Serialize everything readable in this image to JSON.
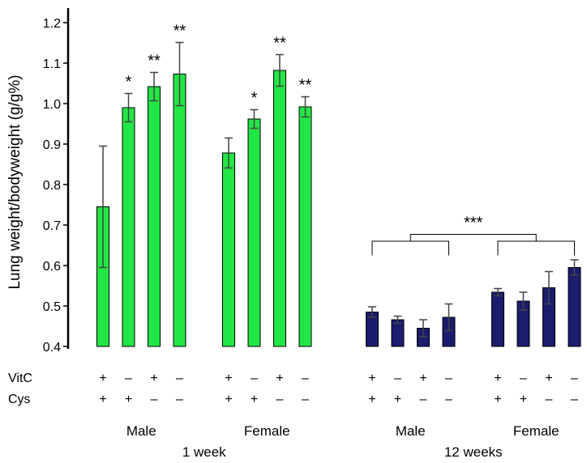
{
  "chart_data": {
    "type": "bar",
    "ylabel": "Lung weight/bodyweight (g/g%)",
    "ylim": [
      0.4,
      1.25
    ],
    "yticks": [
      0.4,
      0.5,
      0.6,
      0.7,
      0.8,
      0.9,
      1.0,
      1.1,
      1.2
    ],
    "ytick_labels": [
      "0.4",
      "0.5",
      "0.6",
      "0.7",
      "0.8",
      "0.9",
      "1.0",
      "1.1",
      "1.2"
    ],
    "row_labels": {
      "vitc": "VitC",
      "cys": "Cys"
    },
    "treatments": [
      {
        "vitc": "+",
        "cys": "+"
      },
      {
        "vitc": "–",
        "cys": "+"
      },
      {
        "vitc": "+",
        "cys": "–"
      },
      {
        "vitc": "–",
        "cys": "–"
      }
    ],
    "timepoints": [
      {
        "label": "1 week",
        "color": "#22e645",
        "groups": [
          {
            "sex": "Male",
            "values": [
              0.745,
              0.99,
              1.042,
              1.073
            ],
            "errors": [
              0.15,
              0.035,
              0.035,
              0.078
            ],
            "significance": [
              "",
              "*",
              "**",
              "**"
            ]
          },
          {
            "sex": "Female",
            "values": [
              0.878,
              0.962,
              1.082,
              0.992
            ],
            "errors": [
              0.037,
              0.023,
              0.039,
              0.025
            ],
            "significance": [
              "",
              "*",
              "**",
              "**"
            ]
          }
        ]
      },
      {
        "label": "12 weeks",
        "color": "#1a1c6e",
        "groups": [
          {
            "sex": "Male",
            "values": [
              0.485,
              0.466,
              0.445,
              0.472
            ],
            "errors": [
              0.013,
              0.009,
              0.021,
              0.033
            ],
            "significance": [
              "",
              "",
              "",
              ""
            ]
          },
          {
            "sex": "Female",
            "values": [
              0.534,
              0.512,
              0.545,
              0.595
            ],
            "errors": [
              0.009,
              0.022,
              0.04,
              0.019
            ],
            "significance": [
              "",
              "",
              "",
              ""
            ]
          }
        ],
        "comparison": "***"
      }
    ]
  }
}
